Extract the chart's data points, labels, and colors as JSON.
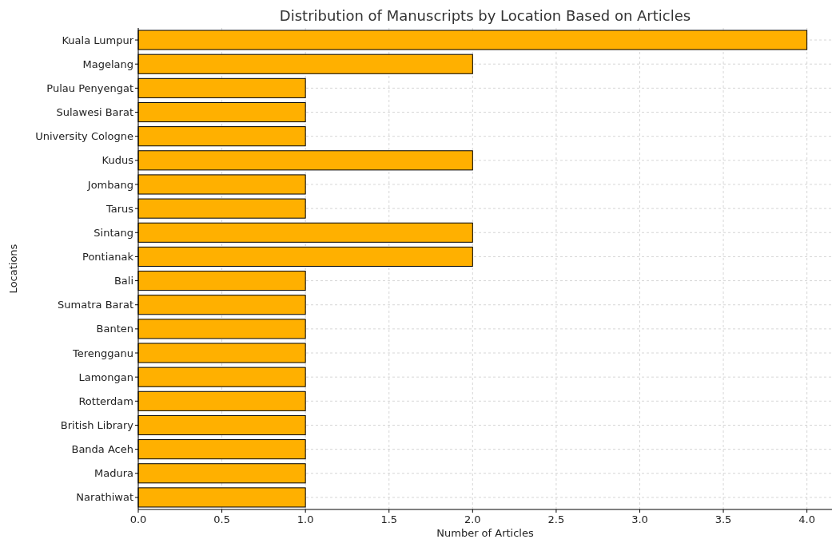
{
  "chart_data": {
    "type": "bar",
    "orientation": "horizontal",
    "title": "Distribution of Manuscripts by Location Based on Articles",
    "xlabel": "Number of Articles",
    "ylabel": "Locations",
    "categories": [
      "Kuala Lumpur",
      "Magelang",
      "Pulau Penyengat",
      "Sulawesi Barat",
      "University Cologne",
      "Kudus",
      "Jombang",
      "Tarus",
      "Sintang",
      "Pontianak",
      "Bali",
      "Sumatra Barat",
      "Banten",
      "Terengganu",
      "Lamongan",
      "Rotterdam",
      "British Library",
      "Banda Aceh",
      "Madura",
      "Narathiwat"
    ],
    "values": [
      4,
      2,
      1,
      1,
      1,
      2,
      1,
      1,
      2,
      2,
      1,
      1,
      1,
      1,
      1,
      1,
      1,
      1,
      1,
      1
    ],
    "color": "#ffb000",
    "xlim": [
      0,
      4.15
    ],
    "xticks": [
      {
        "value": 0,
        "label": "0.0"
      },
      {
        "value": 0.5,
        "label": "0.5"
      },
      {
        "value": 1,
        "label": "1.0"
      },
      {
        "value": 1.5,
        "label": "1.5"
      },
      {
        "value": 2,
        "label": "2.0"
      },
      {
        "value": 2.5,
        "label": "2.5"
      },
      {
        "value": 3,
        "label": "3.0"
      },
      {
        "value": 3.5,
        "label": "3.5"
      },
      {
        "value": 4,
        "label": "4.0"
      }
    ],
    "grid": true
  }
}
